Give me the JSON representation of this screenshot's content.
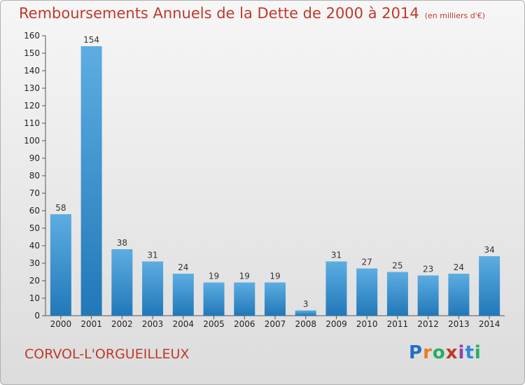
{
  "title": {
    "main": "Remboursements Annuels de la Dette de 2000 à 2014",
    "unit": "(en milliers d'€)"
  },
  "commune": "CORVOL-L'ORGUEILLEUX",
  "logo": {
    "letters": [
      "P",
      "r",
      "o",
      "x",
      "i",
      "t",
      "i"
    ],
    "colors": [
      "#1f6fc5",
      "#e67e22",
      "#27ae60",
      "#c0392b",
      "#8e44ad",
      "#2c8ad8",
      "#27ae60"
    ]
  },
  "colors": {
    "title": "#c0392b",
    "bar_light": "#5dade2",
    "bar_dark": "#2178b8"
  },
  "chart_data": {
    "type": "bar",
    "categories": [
      "2000",
      "2001",
      "2002",
      "2003",
      "2004",
      "2005",
      "2006",
      "2007",
      "2008",
      "2009",
      "2010",
      "2011",
      "2012",
      "2013",
      "2014"
    ],
    "values": [
      58,
      154,
      38,
      31,
      24,
      19,
      19,
      19,
      3,
      31,
      27,
      25,
      23,
      24,
      34
    ],
    "ylim": [
      0,
      160
    ],
    "yticks": [
      0,
      10,
      20,
      30,
      40,
      50,
      60,
      70,
      80,
      90,
      100,
      110,
      120,
      130,
      140,
      150,
      160
    ],
    "grid": false,
    "legend": "none"
  }
}
